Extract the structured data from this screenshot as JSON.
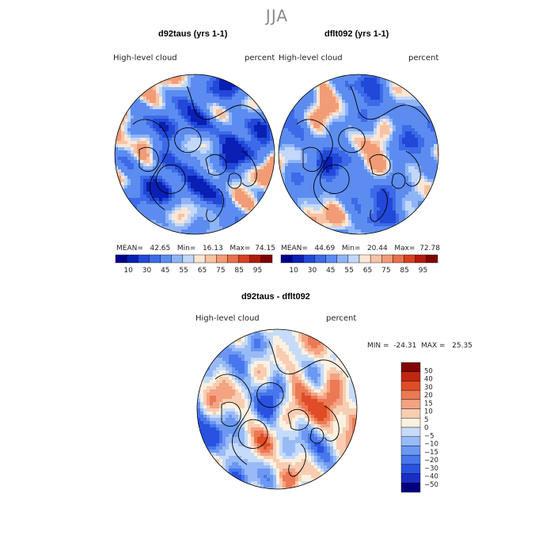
{
  "title": "JJA",
  "colors": {
    "abs_scale": [
      "#00008c",
      "#0a1fb4",
      "#2248d8",
      "#3d6ae8",
      "#5c8cf0",
      "#8fb4f6",
      "#c2d8fa",
      "#fbe6d6",
      "#f7c3a4",
      "#f19c76",
      "#e8704c",
      "#d8401f",
      "#b21a0c",
      "#7e0504"
    ],
    "diff_scale": [
      "#00007e",
      "#1a2ec4",
      "#2952e0",
      "#4876ec",
      "#6c98f2",
      "#98baf6",
      "#c6dbfa",
      "#fbf1e0",
      "#f8cdb2",
      "#f3a382",
      "#eb7954",
      "#e04c27",
      "#c02713",
      "#800404"
    ],
    "land": "#000000"
  },
  "chart_data": [
    {
      "type": "heatmap",
      "projection": "north-polar-stereographic",
      "title": "d92taus (yrs 1-1)",
      "left_label": "High-level cloud",
      "right_label": "percent",
      "stats": {
        "mean_label": "MEAN=",
        "mean": "42.65",
        "min_label": "Min=",
        "min": "16.13",
        "max_label": "Max=",
        "max": "74.15"
      },
      "levels": [
        10,
        30,
        45,
        55,
        65,
        75,
        85,
        95
      ],
      "level_labels": [
        "10",
        "30",
        "45",
        "55",
        "65",
        "75",
        "85",
        "95"
      ],
      "dominant_range": [
        40,
        60
      ]
    },
    {
      "type": "heatmap",
      "projection": "north-polar-stereographic",
      "title": "dflt092 (yrs 1-1)",
      "left_label": "High-level cloud",
      "right_label": "percent",
      "stats": {
        "mean_label": "MEAN=",
        "mean": "44.69",
        "min_label": "Min=",
        "min": "20.44",
        "max_label": "Max=",
        "max": "72.78"
      },
      "levels": [
        10,
        30,
        45,
        55,
        65,
        75,
        85,
        95
      ],
      "level_labels": [
        "10",
        "30",
        "45",
        "55",
        "65",
        "75",
        "85",
        "95"
      ],
      "dominant_range": [
        40,
        60
      ]
    },
    {
      "type": "heatmap",
      "projection": "north-polar-stereographic",
      "title": "d92taus - dflt092",
      "left_label": "High-level cloud",
      "right_label": "percent",
      "stats": {
        "min_label": "MIN =",
        "min": "-24.31",
        "max_label": "MAX =",
        "max": "25.35"
      },
      "levels": [
        50,
        40,
        30,
        20,
        15,
        10,
        5,
        0,
        -5,
        -10,
        -15,
        -20,
        -30,
        -40,
        -50
      ],
      "level_labels": [
        "50",
        "40",
        "30",
        "20",
        "15",
        "10",
        "5",
        "0",
        "−5",
        "−10",
        "−15",
        "−20",
        "−30",
        "−40",
        "−50"
      ]
    }
  ]
}
